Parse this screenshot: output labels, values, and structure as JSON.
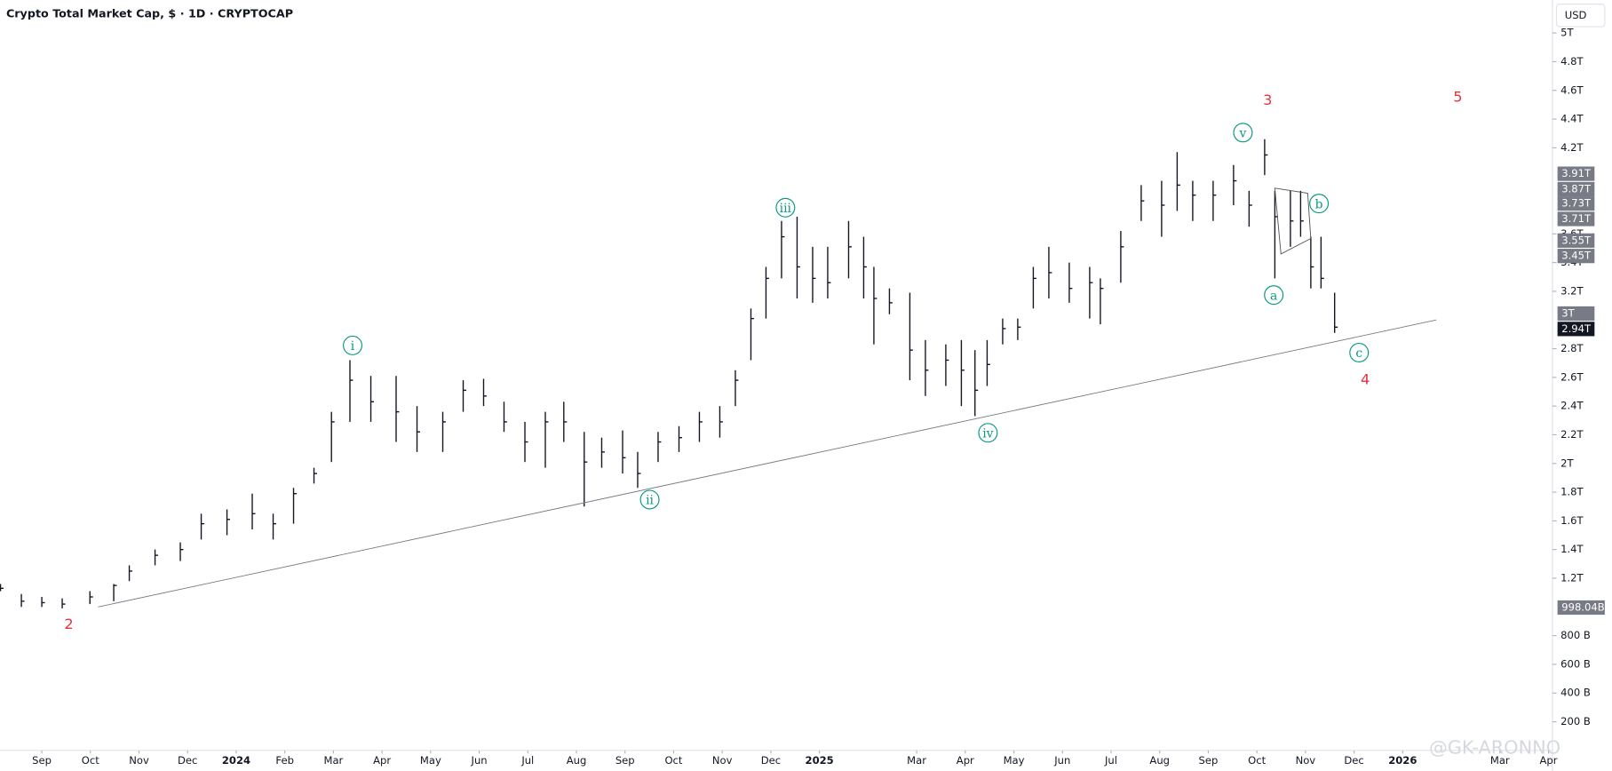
{
  "chart_data": {
    "type": "ohlc",
    "title": "Crypto Total Market Cap, $ · 1D · CRYPTOCAP",
    "currency": "USD",
    "watermark": "@GK-ARONNO",
    "color": "#131722",
    "x": [
      -0.85,
      -0.42,
      0,
      0.42,
      0.99,
      1.48,
      1.8,
      2.33,
      2.85,
      3.28,
      3.81,
      4.33,
      4.76,
      5.18,
      5.6,
      5.96,
      6.34,
      6.77,
      7.29,
      7.72,
      8.25,
      8.67,
      9.09,
      9.51,
      9.94,
      10.36,
      10.74,
      11.16,
      11.52,
      11.95,
      12.26,
      12.68,
      13.11,
      13.53,
      13.95,
      14.27,
      14.59,
      14.9,
      15.22,
      15.54,
      15.86,
      16.17,
      16.6,
      16.91,
      17.12,
      17.44,
      17.86,
      18.18,
      18.6,
      18.92,
      19.2,
      19.45,
      19.77,
      20.08,
      20.4,
      20.72,
      21.14,
      21.56,
      21.78,
      22.2,
      22.62,
      23.04,
      23.36,
      23.68,
      24.1,
      24.52,
      24.84,
      25.16,
      25.37,
      25.69,
      25.9,
      26.11,
      26.32,
      26.6
    ],
    "high": [
      1.16,
      1.09,
      1.07,
      1.06,
      1.11,
      1.16,
      1.29,
      1.4,
      1.45,
      1.65,
      1.68,
      1.79,
      1.65,
      1.83,
      1.97,
      2.36,
      2.72,
      2.61,
      2.61,
      2.4,
      2.36,
      2.58,
      2.59,
      2.43,
      2.29,
      2.36,
      2.43,
      2.22,
      2.18,
      2.23,
      2.08,
      2.22,
      2.26,
      2.36,
      2.4,
      2.65,
      3.08,
      3.37,
      3.69,
      3.72,
      3.51,
      3.51,
      3.69,
      3.58,
      3.37,
      3.22,
      3.19,
      2.86,
      2.83,
      2.86,
      2.79,
      2.86,
      3.01,
      3.01,
      3.37,
      3.51,
      3.4,
      3.37,
      3.29,
      3.62,
      3.94,
      3.97,
      4.17,
      3.97,
      3.97,
      4.08,
      3.9,
      4.26,
      3.9,
      3.9,
      3.9,
      3.58,
      3.58,
      3.19
    ],
    "low": [
      1.11,
      1.0,
      1.0,
      0.99,
      1.02,
      1.04,
      1.18,
      1.29,
      1.32,
      1.47,
      1.5,
      1.54,
      1.47,
      1.58,
      1.86,
      2.01,
      2.29,
      2.29,
      2.15,
      2.08,
      2.08,
      2.36,
      2.4,
      2.22,
      2.01,
      1.97,
      2.15,
      1.7,
      1.97,
      1.93,
      1.83,
      2.01,
      2.08,
      2.15,
      2.18,
      2.4,
      2.72,
      3.01,
      3.29,
      3.15,
      3.12,
      3.15,
      3.29,
      3.15,
      2.83,
      3.04,
      2.58,
      2.47,
      2.54,
      2.4,
      2.33,
      2.54,
      2.83,
      2.86,
      3.08,
      3.15,
      3.12,
      3.01,
      2.97,
      3.26,
      3.69,
      3.58,
      3.76,
      3.69,
      3.69,
      3.8,
      3.65,
      4.01,
      3.29,
      3.51,
      3.58,
      3.22,
      3.22,
      2.91
    ],
    "close": [
      1.13,
      1.04,
      1.03,
      1.02,
      1.07,
      1.15,
      1.25,
      1.36,
      1.4,
      1.58,
      1.61,
      1.65,
      1.58,
      1.79,
      1.93,
      2.29,
      2.58,
      2.43,
      2.36,
      2.22,
      2.29,
      2.51,
      2.47,
      2.29,
      2.15,
      2.29,
      2.29,
      2.01,
      2.08,
      2.04,
      1.93,
      2.15,
      2.18,
      2.29,
      2.29,
      2.58,
      3.01,
      3.29,
      3.58,
      3.37,
      3.29,
      3.26,
      3.51,
      3.37,
      3.15,
      3.12,
      2.79,
      2.65,
      2.72,
      2.65,
      2.51,
      2.69,
      2.94,
      2.95,
      3.29,
      3.33,
      3.22,
      3.26,
      3.22,
      3.51,
      3.83,
      3.8,
      3.94,
      3.87,
      3.87,
      3.97,
      3.8,
      4.15,
      3.72,
      3.69,
      3.69,
      3.37,
      3.29,
      2.95
    ],
    "xlim": [
      -0.86,
      31.08
    ],
    "ylim": [
      0,
      5.23
    ],
    "xticks": [
      {
        "value": 0,
        "label": "Sep"
      },
      {
        "value": 1,
        "label": "Oct"
      },
      {
        "value": 2,
        "label": "Nov"
      },
      {
        "value": 3,
        "label": "Dec"
      },
      {
        "value": 4,
        "label": "2024"
      },
      {
        "value": 5,
        "label": "Feb"
      },
      {
        "value": 6,
        "label": "Mar"
      },
      {
        "value": 7,
        "label": "Apr"
      },
      {
        "value": 8,
        "label": "May"
      },
      {
        "value": 9,
        "label": "Jun"
      },
      {
        "value": 10,
        "label": "Jul"
      },
      {
        "value": 11,
        "label": "Aug"
      },
      {
        "value": 12,
        "label": "Sep"
      },
      {
        "value": 13,
        "label": "Oct"
      },
      {
        "value": 14,
        "label": "Nov"
      },
      {
        "value": 15,
        "label": "Dec"
      },
      {
        "value": 16,
        "label": "2025"
      },
      {
        "value": 18,
        "label": "Mar"
      },
      {
        "value": 19,
        "label": "Apr"
      },
      {
        "value": 20,
        "label": "May"
      },
      {
        "value": 21,
        "label": "Jun"
      },
      {
        "value": 22,
        "label": "Jul"
      },
      {
        "value": 23,
        "label": "Aug"
      },
      {
        "value": 24,
        "label": "Sep"
      },
      {
        "value": 25,
        "label": "Oct"
      },
      {
        "value": 26,
        "label": "Nov"
      },
      {
        "value": 27,
        "label": "Dec"
      },
      {
        "value": 28,
        "label": "2026"
      },
      {
        "value": 30,
        "label": "Mar"
      },
      {
        "value": 31,
        "label": "Apr"
      }
    ],
    "yticks": [
      {
        "value": 0.2,
        "label": "200 B"
      },
      {
        "value": 0.4,
        "label": "400 B"
      },
      {
        "value": 0.6,
        "label": "600 B"
      },
      {
        "value": 0.8,
        "label": "800 B"
      },
      {
        "value": 1.2,
        "label": "1.2T"
      },
      {
        "value": 1.4,
        "label": "1.4T"
      },
      {
        "value": 1.6,
        "label": "1.6T"
      },
      {
        "value": 1.8,
        "label": "1.8T"
      },
      {
        "value": 2,
        "label": "2T"
      },
      {
        "value": 2.2,
        "label": "2.2T"
      },
      {
        "value": 2.4,
        "label": "2.4T"
      },
      {
        "value": 2.6,
        "label": "2.6T"
      },
      {
        "value": 2.8,
        "label": "2.8T"
      },
      {
        "value": 3.2,
        "label": "3.2T"
      },
      {
        "value": 3.4,
        "label": "3.4T"
      },
      {
        "value": 3.6,
        "label": "3.6T"
      },
      {
        "value": 4.2,
        "label": "4.2T"
      },
      {
        "value": 4.4,
        "label": "4.4T"
      },
      {
        "value": 4.6,
        "label": "4.6T"
      },
      {
        "value": 4.8,
        "label": "4.8T"
      },
      {
        "value": 5,
        "label": "5T"
      }
    ],
    "price_labels": [
      {
        "value": 3.91,
        "label": "3.91T"
      },
      {
        "value": 3.87,
        "label": "3.87T"
      },
      {
        "value": 3.73,
        "label": "3.73T"
      },
      {
        "value": 3.71,
        "label": "3.71T"
      },
      {
        "value": 3.55,
        "label": "3.55T"
      },
      {
        "value": 3.45,
        "label": "3.45T"
      },
      {
        "value": 3,
        "label": "3T"
      },
      {
        "value": 2.94,
        "label": "2.94T"
      },
      {
        "value": 0.998,
        "label": "998.04B"
      }
    ],
    "trendline": {
      "x": [
        1.16,
        28.69
      ],
      "y": [
        1.0,
        3.0
      ]
    },
    "waves": [
      "2",
      "3",
      "4",
      "5"
    ],
    "subwaves": [
      "i",
      "ii",
      "iii",
      "iv",
      "v",
      "a",
      "b",
      "c"
    ]
  }
}
